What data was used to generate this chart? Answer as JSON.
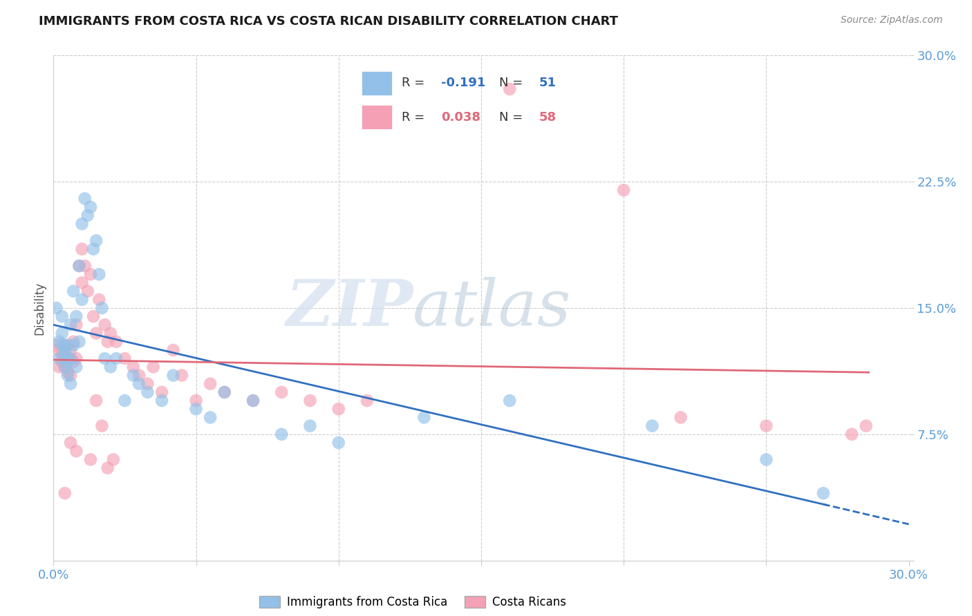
{
  "title": "IMMIGRANTS FROM COSTA RICA VS COSTA RICAN DISABILITY CORRELATION CHART",
  "source": "Source: ZipAtlas.com",
  "ylabel": "Disability",
  "xlim": [
    0.0,
    0.3
  ],
  "ylim": [
    0.0,
    0.3
  ],
  "xtick_positions": [
    0.0,
    0.05,
    0.1,
    0.15,
    0.2,
    0.25,
    0.3
  ],
  "ytick_positions": [
    0.0,
    0.075,
    0.15,
    0.225,
    0.3
  ],
  "legend_label1": "Immigrants from Costa Rica",
  "legend_label2": "Costa Ricans",
  "R1": -0.191,
  "N1": 51,
  "R2": 0.038,
  "N2": 58,
  "color_blue": "#92C0E8",
  "color_pink": "#F4A0B5",
  "line_color_blue": "#3070C0",
  "line_color_pink": "#E06878",
  "blue_x": [
    0.001,
    0.002,
    0.002,
    0.003,
    0.003,
    0.003,
    0.004,
    0.004,
    0.004,
    0.005,
    0.005,
    0.005,
    0.006,
    0.006,
    0.006,
    0.007,
    0.007,
    0.008,
    0.008,
    0.009,
    0.009,
    0.01,
    0.01,
    0.011,
    0.012,
    0.013,
    0.014,
    0.015,
    0.016,
    0.017,
    0.018,
    0.02,
    0.022,
    0.025,
    0.028,
    0.03,
    0.033,
    0.038,
    0.042,
    0.05,
    0.055,
    0.06,
    0.07,
    0.08,
    0.09,
    0.1,
    0.13,
    0.16,
    0.21,
    0.25,
    0.27
  ],
  "blue_y": [
    0.15,
    0.13,
    0.12,
    0.128,
    0.135,
    0.145,
    0.122,
    0.115,
    0.125,
    0.118,
    0.11,
    0.128,
    0.12,
    0.14,
    0.105,
    0.128,
    0.16,
    0.115,
    0.145,
    0.13,
    0.175,
    0.2,
    0.155,
    0.215,
    0.205,
    0.21,
    0.185,
    0.19,
    0.17,
    0.15,
    0.12,
    0.115,
    0.12,
    0.095,
    0.11,
    0.105,
    0.1,
    0.095,
    0.11,
    0.09,
    0.085,
    0.1,
    0.095,
    0.075,
    0.08,
    0.07,
    0.085,
    0.095,
    0.08,
    0.06,
    0.04
  ],
  "pink_x": [
    0.001,
    0.002,
    0.002,
    0.003,
    0.003,
    0.004,
    0.004,
    0.005,
    0.005,
    0.006,
    0.006,
    0.007,
    0.007,
    0.008,
    0.008,
    0.009,
    0.01,
    0.01,
    0.011,
    0.012,
    0.013,
    0.014,
    0.015,
    0.016,
    0.018,
    0.019,
    0.02,
    0.022,
    0.025,
    0.028,
    0.03,
    0.033,
    0.035,
    0.038,
    0.042,
    0.045,
    0.05,
    0.055,
    0.06,
    0.07,
    0.08,
    0.09,
    0.1,
    0.11,
    0.16,
    0.2,
    0.22,
    0.25,
    0.28,
    0.285,
    0.013,
    0.015,
    0.017,
    0.019,
    0.021,
    0.008,
    0.006,
    0.004
  ],
  "pink_y": [
    0.128,
    0.125,
    0.115,
    0.122,
    0.118,
    0.115,
    0.128,
    0.112,
    0.12,
    0.11,
    0.125,
    0.118,
    0.13,
    0.12,
    0.14,
    0.175,
    0.185,
    0.165,
    0.175,
    0.16,
    0.17,
    0.145,
    0.135,
    0.155,
    0.14,
    0.13,
    0.135,
    0.13,
    0.12,
    0.115,
    0.11,
    0.105,
    0.115,
    0.1,
    0.125,
    0.11,
    0.095,
    0.105,
    0.1,
    0.095,
    0.1,
    0.095,
    0.09,
    0.095,
    0.28,
    0.22,
    0.085,
    0.08,
    0.075,
    0.08,
    0.06,
    0.095,
    0.08,
    0.055,
    0.06,
    0.065,
    0.07,
    0.04
  ]
}
